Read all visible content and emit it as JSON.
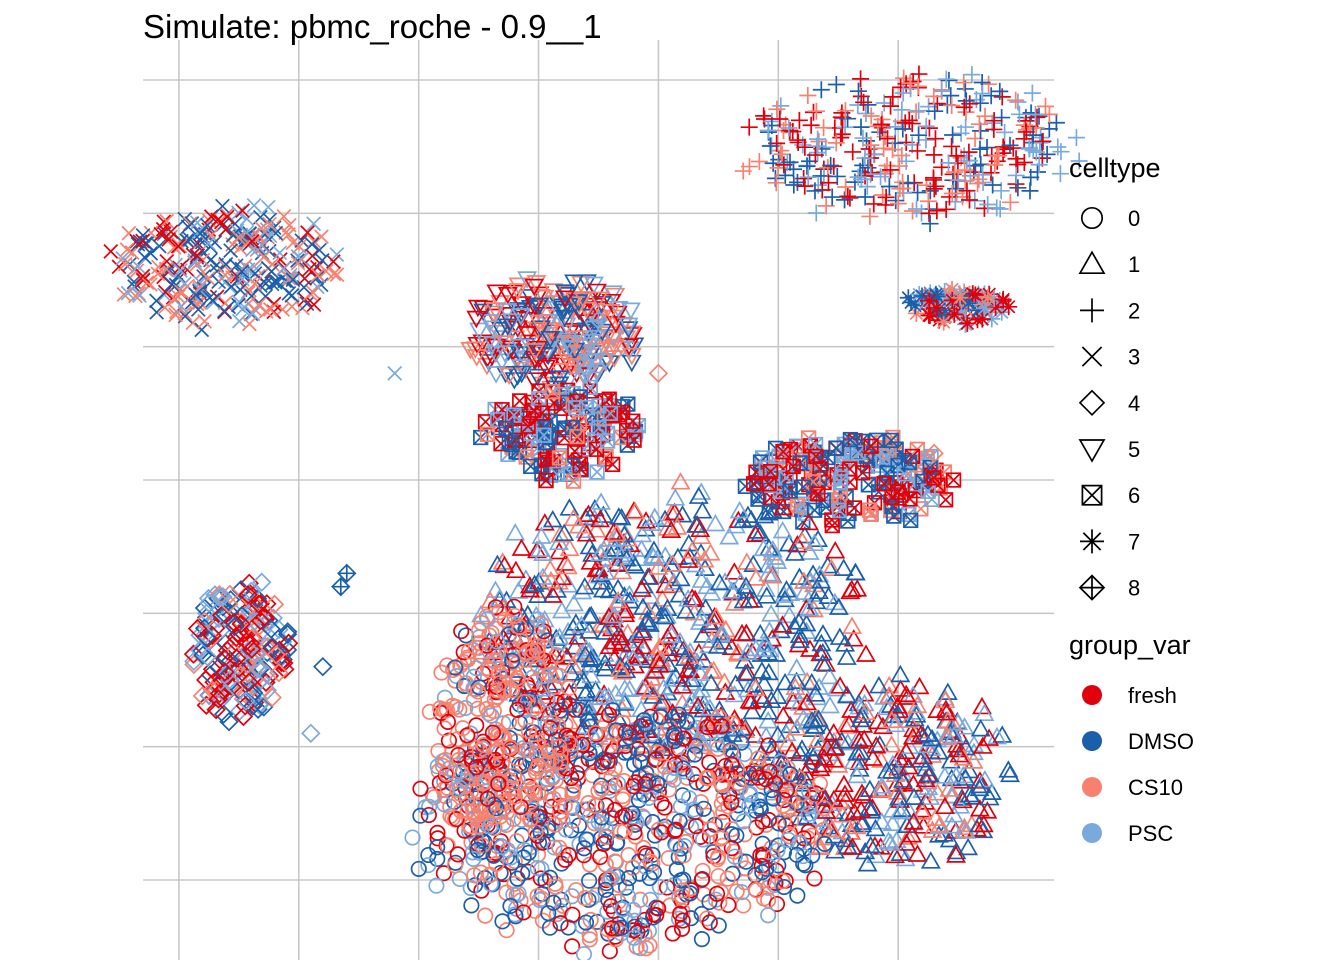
{
  "chart_data": {
    "type": "scatter",
    "title": "Simulate: pbmc_roche - 0.9__1",
    "xlabel": "",
    "ylabel": "",
    "grid": true,
    "axis_tick_labels_shown": false,
    "legend_placement": "right",
    "shape_legend": {
      "title": "celltype",
      "items": [
        {
          "label": "0",
          "shape": "circle-open"
        },
        {
          "label": "1",
          "shape": "triangle-open"
        },
        {
          "label": "2",
          "shape": "plus"
        },
        {
          "label": "3",
          "shape": "cross"
        },
        {
          "label": "4",
          "shape": "diamond-open"
        },
        {
          "label": "5",
          "shape": "triangle-down-open"
        },
        {
          "label": "6",
          "shape": "square-cross"
        },
        {
          "label": "7",
          "shape": "asterisk"
        },
        {
          "label": "8",
          "shape": "diamond-plus"
        }
      ]
    },
    "color_legend": {
      "title": "group_var",
      "items": [
        {
          "label": "fresh",
          "color": "#E0000C"
        },
        {
          "label": "DMSO",
          "color": "#1B5FAA"
        },
        {
          "label": "CS10",
          "color": "#F8806E"
        },
        {
          "label": "PSC",
          "color": "#7AAADD"
        }
      ]
    },
    "clusters": [
      {
        "celltype": "2",
        "cx": 6.1,
        "cy": 4.5,
        "rx": 1.35,
        "ry": 0.55,
        "n": 340,
        "mix": [
          0.3,
          0.2,
          0.25,
          0.25
        ]
      },
      {
        "celltype": "3",
        "cx": 0.4,
        "cy": 3.6,
        "rx": 0.95,
        "ry": 0.45,
        "n": 300,
        "mix": [
          0.15,
          0.35,
          0.25,
          0.25
        ]
      },
      {
        "celltype": "7",
        "cx": 6.5,
        "cy": 3.3,
        "rx": 0.45,
        "ry": 0.13,
        "n": 80,
        "mix": [
          0.3,
          0.3,
          0.1,
          0.3
        ]
      },
      {
        "celltype": "5",
        "cx": 3.1,
        "cy": 3.1,
        "rx": 0.75,
        "ry": 0.4,
        "n": 260,
        "mix": [
          0.2,
          0.25,
          0.3,
          0.25
        ]
      },
      {
        "celltype": "6",
        "cx": 3.2,
        "cy": 2.35,
        "rx": 0.65,
        "ry": 0.35,
        "n": 150,
        "mix": [
          0.4,
          0.3,
          0.1,
          0.2
        ]
      },
      {
        "celltype": "6",
        "cx": 5.6,
        "cy": 2.0,
        "rx": 0.85,
        "ry": 0.35,
        "n": 200,
        "mix": [
          0.35,
          0.25,
          0.15,
          0.25
        ]
      },
      {
        "celltype": "4",
        "cx": 0.5,
        "cy": 0.75,
        "rx": 0.4,
        "ry": 0.55,
        "n": 200,
        "mix": [
          0.35,
          0.2,
          0.15,
          0.3
        ]
      },
      {
        "celltype": "1",
        "cx": 4.1,
        "cy": 0.9,
        "rx": 1.6,
        "ry": 1.0,
        "n": 640,
        "mix": [
          0.2,
          0.35,
          0.2,
          0.25
        ]
      },
      {
        "celltype": "1",
        "cx": 5.9,
        "cy": -0.2,
        "rx": 1.0,
        "ry": 0.7,
        "n": 320,
        "mix": [
          0.3,
          0.35,
          0.15,
          0.2
        ]
      },
      {
        "celltype": "0",
        "cx": 3.7,
        "cy": -0.6,
        "rx": 1.7,
        "ry": 0.9,
        "n": 780,
        "mix": [
          0.22,
          0.3,
          0.28,
          0.2
        ]
      },
      {
        "celltype": "0",
        "cx": 2.7,
        "cy": 0.2,
        "rx": 0.6,
        "ry": 0.9,
        "n": 300,
        "mix": [
          0.15,
          0.1,
          0.6,
          0.15
        ]
      }
    ],
    "outlier_points": [
      {
        "x": 1.8,
        "y": 2.8,
        "celltype": "3",
        "group": "PSC"
      },
      {
        "x": 4.0,
        "y": 2.8,
        "celltype": "4",
        "group": "CS10"
      },
      {
        "x": 6.3,
        "y": 2.2,
        "celltype": "4",
        "group": "CS10"
      },
      {
        "x": 1.4,
        "y": 1.3,
        "celltype": "8",
        "group": "DMSO"
      },
      {
        "x": 1.35,
        "y": 1.2,
        "celltype": "8",
        "group": "DMSO"
      },
      {
        "x": 1.2,
        "y": 0.6,
        "celltype": "4",
        "group": "DMSO"
      },
      {
        "x": 1.1,
        "y": 0.1,
        "celltype": "4",
        "group": "PSC"
      },
      {
        "x": 3.5,
        "y": 3.2,
        "celltype": "8",
        "group": "PSC"
      },
      {
        "x": 3.6,
        "y": 2.5,
        "celltype": "6",
        "group": "PSC"
      },
      {
        "x": 2.3,
        "y": -0.2,
        "celltype": "0",
        "group": "PSC"
      }
    ],
    "xlim": [
      -0.3,
      7.3
    ],
    "ylim": [
      -1.6,
      5.3
    ],
    "x_breaks": [
      0,
      1,
      2,
      3,
      4,
      5,
      6
    ],
    "y_breaks": [
      -1,
      0,
      1,
      2,
      3,
      4,
      5
    ]
  }
}
